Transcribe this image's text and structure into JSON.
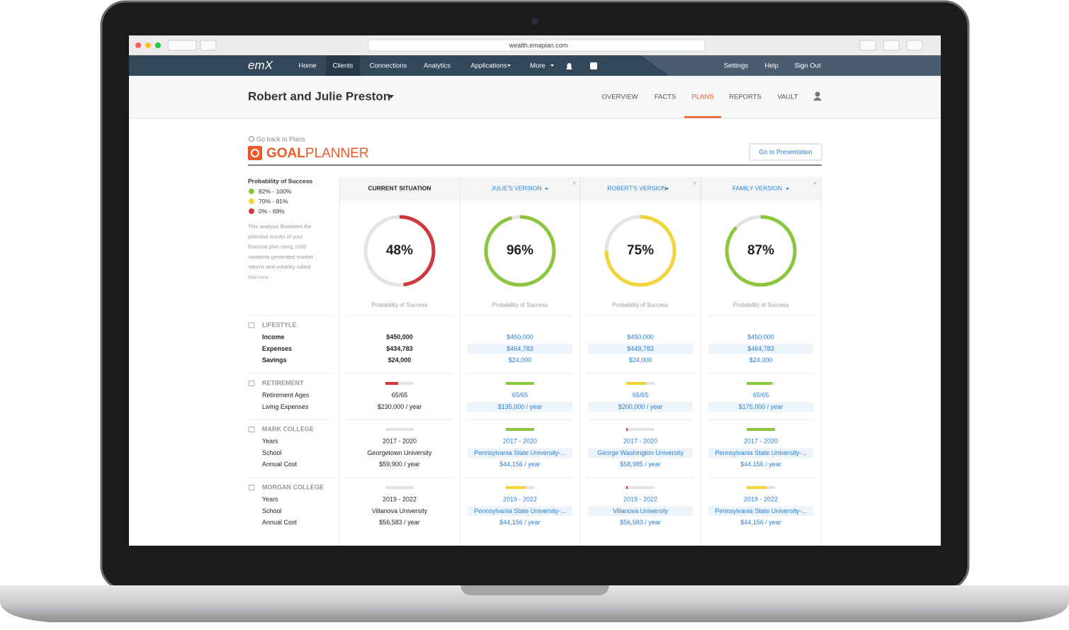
{
  "browser": {
    "url": "wealth.emaplan.com"
  },
  "nav": {
    "logo": "emX",
    "items": [
      "Home",
      "Clients",
      "Connections",
      "Analytics",
      "Applications",
      "More"
    ],
    "active": "Clients",
    "right": [
      "Settings",
      "Help",
      "Sign Out"
    ]
  },
  "header": {
    "client": "Robert and Julie Preston",
    "tabs": [
      "OVERVIEW",
      "FACTS",
      "PLANS",
      "REPORTS",
      "VAULT"
    ],
    "active_tab": "PLANS"
  },
  "page": {
    "back": "Go back to Plans",
    "title_bold": "GOAL",
    "title_light": "PLANNER",
    "button": "Go to Presentation"
  },
  "legend": {
    "title": "Probability of Success",
    "items": [
      {
        "label": "82% - 100%",
        "color": "#8cc63f"
      },
      {
        "label": "70% - 81%",
        "color": "#f2d43a"
      },
      {
        "label": "0% - 69%",
        "color": "#d0383e"
      }
    ],
    "description": [
      "This analysis illustrates the",
      "potential results of your",
      "financial plan using 1000",
      "randomly generated market",
      "returns and volatility called",
      "trial runs."
    ]
  },
  "sections": [
    {
      "title": "LIFESTYLE",
      "rows": [
        "Income",
        "Expenses",
        "Savings"
      ]
    },
    {
      "title": "RETIREMENT",
      "rows": [
        "Retirement Ages",
        "Living Expenses"
      ]
    },
    {
      "title": "MARK COLLEGE",
      "rows": [
        "Years",
        "School",
        "Annual Cost"
      ]
    },
    {
      "title": "MORGAN COLLEGE",
      "rows": [
        "Years",
        "School",
        "Annual Cost"
      ]
    }
  ],
  "scenarios": [
    {
      "name": "CURRENT SITUATION",
      "probability": 48,
      "probability_label": "48%",
      "color": "#d0383e",
      "caption": "Probability of Success",
      "text_color": "#222222",
      "sections": [
        {
          "values": [
            "$450,000",
            "$434,783",
            "$24,000"
          ]
        },
        {
          "bar": 0.45,
          "bar_color": "#d0383e",
          "values": [
            "65/65",
            "$230,000 / year"
          ]
        },
        {
          "bar": 0,
          "bar_color": "#e3e3e3",
          "values": [
            "2017 - 2020",
            "Georgetown University",
            "$59,900 / year"
          ]
        },
        {
          "bar": 0,
          "bar_color": "#e3e3e3",
          "values": [
            "2019 - 2022",
            "Villanova University",
            "$56,583 / year"
          ]
        }
      ]
    },
    {
      "name": "JULIE'S VERSION",
      "probability": 96,
      "probability_label": "96%",
      "color": "#8cc63f",
      "caption": "Probability of Success",
      "text_color": "#2a7fd4",
      "sections": [
        {
          "values": [
            "$450,000",
            "$464,783",
            "$24,000"
          ]
        },
        {
          "bar": 1,
          "bar_color": "#8cc63f",
          "values": [
            "65/65",
            "$135,000 / year"
          ]
        },
        {
          "bar": 1,
          "bar_color": "#8cc63f",
          "values": [
            "2017 - 2020",
            "Pennsylvania State University-...",
            "$44,156 / year"
          ]
        },
        {
          "bar": 0.7,
          "bar_color": "#f2d43a",
          "values": [
            "2019 - 2022",
            "Pennsylvania State University-...",
            "$44,156 / year"
          ]
        }
      ]
    },
    {
      "name": "ROBERT'S VERSION",
      "probability": 75,
      "probability_label": "75%",
      "color": "#f2d43a",
      "caption": "Probability of Success",
      "text_color": "#2a7fd4",
      "sections": [
        {
          "values": [
            "$450,000",
            "$449,783",
            "$24,000"
          ]
        },
        {
          "bar": 0.7,
          "bar_color": "#f2d43a",
          "values": [
            "65/65",
            "$200,000 / year"
          ]
        },
        {
          "bar": 0.05,
          "bar_color": "#d0383e",
          "values": [
            "2017 - 2020",
            "George Washington University",
            "$58,985 / year"
          ]
        },
        {
          "bar": 0.05,
          "bar_color": "#d0383e",
          "values": [
            "2019 - 2022",
            "Villanova University",
            "$56,583 / year"
          ]
        }
      ]
    },
    {
      "name": "FAMILY VERSION",
      "probability": 87,
      "probability_label": "87%",
      "color": "#8cc63f",
      "caption": "Probability of Success",
      "text_color": "#2a7fd4",
      "sections": [
        {
          "values": [
            "$450,000",
            "$464,783",
            "$24,000"
          ]
        },
        {
          "bar": 0.9,
          "bar_color": "#8cc63f",
          "values": [
            "65/65",
            "$175,000 / year"
          ]
        },
        {
          "bar": 1,
          "bar_color": "#8cc63f",
          "values": [
            "2017 - 2020",
            "Pennsylvania State University-...",
            "$44,156 / year"
          ]
        },
        {
          "bar": 0.7,
          "bar_color": "#f2d43a",
          "values": [
            "2019 - 2022",
            "Pennsylvania State University-...",
            "$44,156 / year"
          ]
        }
      ]
    }
  ]
}
